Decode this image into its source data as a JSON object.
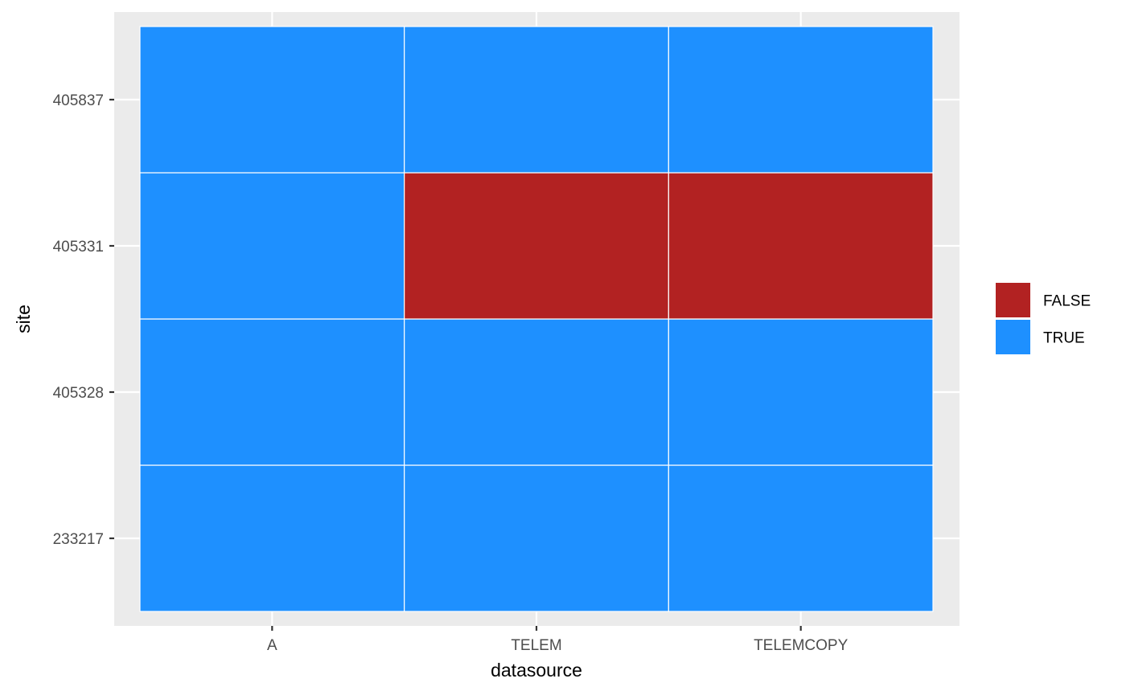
{
  "chart_data": {
    "type": "heatmap",
    "xlabel": "datasource",
    "ylabel": "site",
    "x_categories": [
      "A",
      "TELEM",
      "TELEMCOPY"
    ],
    "y_categories": [
      "233217",
      "405328",
      "405331",
      "405837"
    ],
    "cells": [
      {
        "x": "A",
        "y": "233217",
        "value": "TRUE"
      },
      {
        "x": "TELEM",
        "y": "233217",
        "value": "TRUE"
      },
      {
        "x": "TELEMCOPY",
        "y": "233217",
        "value": "TRUE"
      },
      {
        "x": "A",
        "y": "405328",
        "value": "TRUE"
      },
      {
        "x": "TELEM",
        "y": "405328",
        "value": "TRUE"
      },
      {
        "x": "TELEMCOPY",
        "y": "405328",
        "value": "TRUE"
      },
      {
        "x": "A",
        "y": "405331",
        "value": "TRUE"
      },
      {
        "x": "TELEM",
        "y": "405331",
        "value": "FALSE"
      },
      {
        "x": "TELEMCOPY",
        "y": "405331",
        "value": "FALSE"
      },
      {
        "x": "A",
        "y": "405837",
        "value": "TRUE"
      },
      {
        "x": "TELEM",
        "y": "405837",
        "value": "TRUE"
      },
      {
        "x": "TELEMCOPY",
        "y": "405837",
        "value": "TRUE"
      }
    ],
    "legend": {
      "placement": "right",
      "entries": [
        {
          "label": "FALSE",
          "color": "#b22222"
        },
        {
          "label": "TRUE",
          "color": "#1e90ff"
        }
      ]
    },
    "grid": true
  },
  "colors": {
    "panel_background": "#ebebeb",
    "grid_line": "#ffffff",
    "tile_border": "#ffffff",
    "tick_mark": "#333333"
  }
}
